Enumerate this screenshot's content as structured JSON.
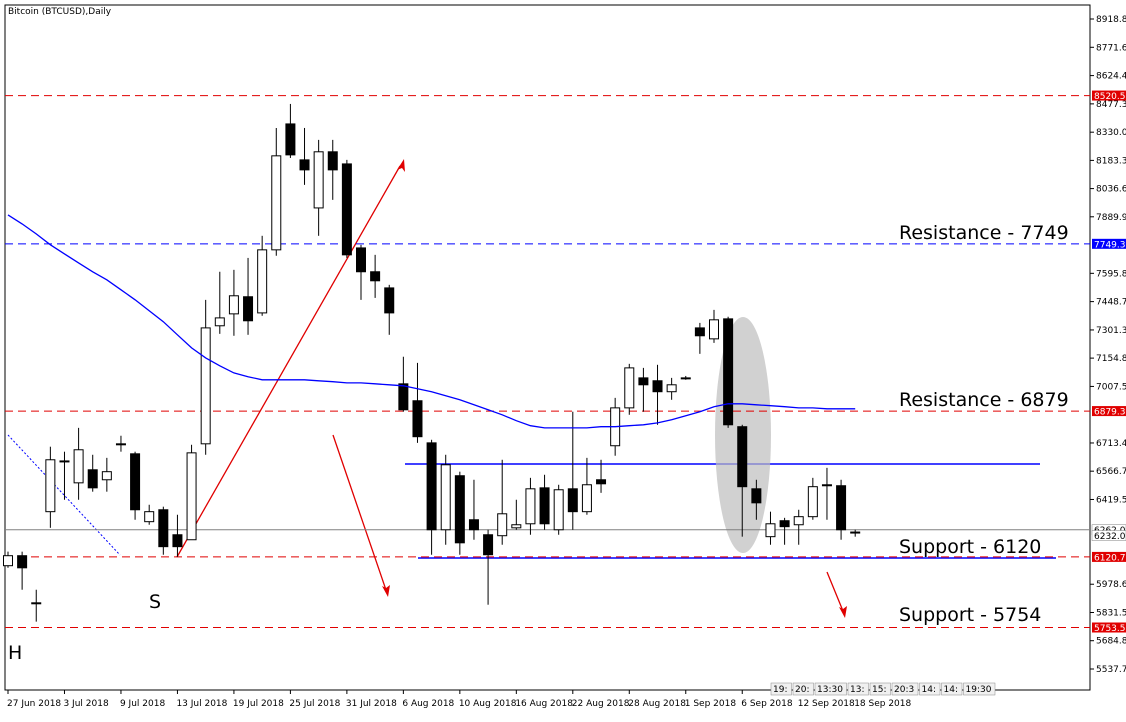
{
  "chart_data": {
    "type": "candlestick",
    "title": "Bitcoin (BTCUSD),Daily",
    "categories": [
      "27 Jun 2018",
      null,
      null,
      null,
      "3 Jul 2018",
      null,
      null,
      null,
      "9 Jul 2018",
      null,
      null,
      null,
      "13 Jul 2018",
      null,
      null,
      null,
      "19 Jul 2018",
      null,
      null,
      null,
      "25 Jul 2018",
      null,
      null,
      null,
      "31 Jul 2018",
      null,
      null,
      null,
      "6 Aug 2018",
      null,
      null,
      null,
      "10 Aug 2018",
      null,
      null,
      null,
      "16 Aug 2018",
      null,
      null,
      null,
      "22 Aug 2018",
      null,
      null,
      null,
      "28 Aug 2018",
      null,
      null,
      null,
      "1 Sep 2018",
      null,
      null,
      null,
      "6 Sep 2018",
      null,
      null,
      null,
      "12 Sep 2018",
      null,
      null,
      null,
      "18 Sep 2018"
    ],
    "open": [
      6075,
      6127,
      5882,
      6356,
      6616,
      6506,
      6574,
      6522,
      6709,
      6657,
      6304,
      6366,
      6236,
      6210,
      6709,
      7323,
      7385,
      7474,
      7390,
      7718,
      8373,
      8186,
      7936,
      8228,
      8165,
      7728,
      7604,
      7520,
      7021,
      6933,
      6714,
      6262,
      6543,
      6314,
      6236,
      6231,
      6272,
      6293,
      6480,
      6262,
      6475,
      6356,
      6522,
      6699,
      6896,
      7052,
      7037,
      6980,
      7052,
      7312,
      7255,
      7359,
      6798,
      6475,
      6226,
      6309,
      6288,
      6330,
      6496,
      6491,
      6246
    ],
    "high": [
      6148,
      6148,
      5950,
      6694,
      6668,
      6792,
      6652,
      6636,
      6751,
      6668,
      6392,
      6382,
      6340,
      6704,
      7458,
      7604,
      7614,
      7676,
      7791,
      8352,
      8477,
      8352,
      8290,
      8290,
      8186,
      7744,
      7692,
      7536,
      7162,
      7130,
      6730,
      6652,
      6564,
      6522,
      6262,
      6626,
      6418,
      6532,
      6548,
      6496,
      6876,
      6636,
      6626,
      6948,
      7125,
      7104,
      7120,
      7052,
      7062,
      7338,
      7406,
      7370,
      6808,
      6522,
      6356,
      6324,
      6366,
      6532,
      6584,
      6522,
      6262
    ],
    "low": [
      6064,
      5950,
      5784,
      6272,
      6418,
      6418,
      6460,
      6460,
      6668,
      6314,
      6288,
      6132,
      6122,
      6210,
      6652,
      7281,
      7271,
      7276,
      7375,
      7687,
      8196,
      8056,
      7791,
      7978,
      7676,
      7458,
      7468,
      7276,
      6876,
      6714,
      6132,
      6184,
      6132,
      6210,
      5872,
      6184,
      6262,
      6236,
      6262,
      6236,
      6262,
      6340,
      6454,
      6647,
      6860,
      6876,
      6808,
      6938,
      7042,
      7177,
      7234,
      6792,
      6226,
      6314,
      6184,
      6184,
      6184,
      6314,
      6314,
      6210,
      6226
    ],
    "close": [
      6127,
      6064,
      5880,
      6626,
      6620,
      6678,
      6480,
      6564,
      6706,
      6366,
      6356,
      6174,
      6174,
      6662,
      7312,
      7364,
      7479,
      7349,
      7718,
      8207,
      8212,
      8134,
      8228,
      8134,
      7692,
      7604,
      7557,
      7390,
      6886,
      6746,
      6262,
      6600,
      6194,
      6262,
      6132,
      6345,
      6288,
      6475,
      6293,
      6470,
      6356,
      6496,
      6501,
      6896,
      7104,
      7016,
      6980,
      7016,
      7050,
      7271,
      7354,
      6808,
      6486,
      6402,
      6293,
      6278,
      6330,
      6486,
      6492,
      6262,
      6250
    ],
    "up_color": "#ffffff",
    "down_color": "#000000",
    "ma": {
      "color": "#0000ff",
      "values": [
        7900,
        7853,
        7801,
        7744,
        7697,
        7650,
        7604,
        7562,
        7510,
        7458,
        7401,
        7344,
        7276,
        7208,
        7156,
        7115,
        7078,
        7058,
        7042,
        7042,
        7042,
        7042,
        7037,
        7032,
        7026,
        7026,
        7021,
        7016,
        7011,
        6995,
        6980,
        6959,
        6938,
        6912,
        6886,
        6860,
        6829,
        6803,
        6792,
        6792,
        6792,
        6792,
        6798,
        6798,
        6803,
        6808,
        6818,
        6834,
        6855,
        6876,
        6902,
        6917,
        6917,
        6912,
        6907,
        6902,
        6896,
        6896,
        6891,
        6891,
        6891
      ]
    },
    "ylim": [
      5428.4,
      8991.6
    ],
    "yticks": [
      8918.8,
      8771.6,
      8624.4,
      8477.3,
      {
        "value": 8330,
        "label": "8330.0"
      },
      8183.3,
      8036.6,
      7889.9,
      7595.8,
      7448.7,
      7301.3,
      7154.8,
      7007.5,
      6713.4,
      6566.7,
      6419.5,
      5978.6,
      5831.5,
      5684.8,
      5537.7
    ],
    "levels": [
      {
        "value": 8520.5,
        "label": "8520.5",
        "color": "#e00000",
        "style": "dashed"
      },
      {
        "value": 7749.3,
        "label": "7749.3",
        "color": "#0000ff",
        "style": "dashed"
      },
      {
        "value": 6879.3,
        "label": "6879.3",
        "color": "#e00000",
        "style": "dashed"
      },
      {
        "value": 6262,
        "label": "6262.0",
        "color": "#808080",
        "style": "solid"
      },
      {
        "value": 6232,
        "label": "6232.0",
        "color": "#808080",
        "style": "label"
      },
      {
        "value": 6120.7,
        "label": "6120.7",
        "color": "#e00000",
        "style": "dashed"
      },
      {
        "value": 5753.5,
        "label": "5753.5",
        "color": "#e00000",
        "style": "dashed"
      }
    ],
    "annotations": [
      "Resistance - 7749",
      "Resistance - 6879",
      "Support - 6120",
      "Support - 5754",
      "S",
      "H"
    ],
    "tabs": [
      "19:",
      "20:",
      "13:30",
      "13:",
      "15:",
      "20:3",
      "14:",
      "14:",
      "19:30"
    ]
  }
}
